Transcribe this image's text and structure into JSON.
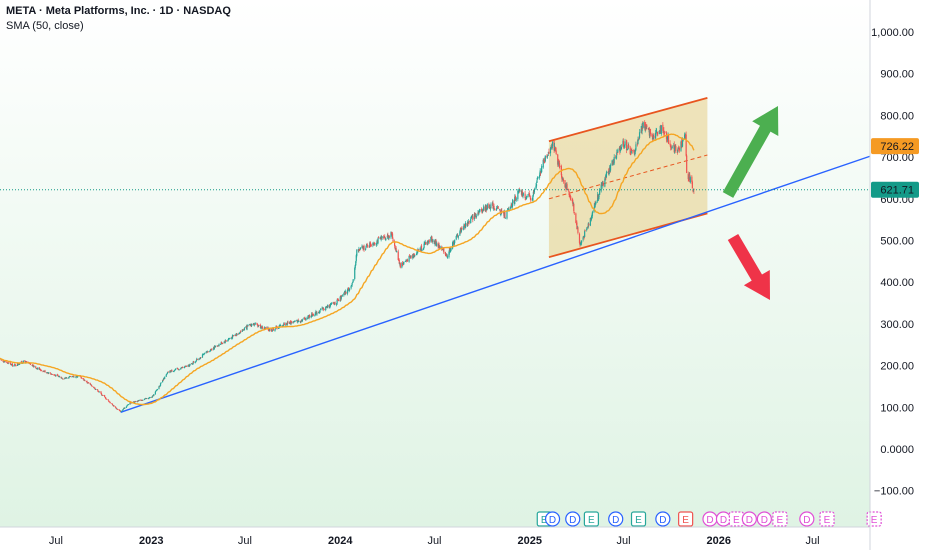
{
  "header": {
    "title": "META · Meta Platforms, Inc. · 1D · NASDAQ",
    "indicator": "SMA (50, close)"
  },
  "colors": {
    "up": "#26a69a",
    "down": "#ef5350",
    "sma": "#f5a623",
    "trendline": "#2962ff",
    "channel": "#e8551f",
    "channel_fill": "#e7d28f",
    "arrow_up": "#4caf50",
    "arrow_down": "#ef3348",
    "bg_top": "#ffffff",
    "bg_bottom": "#dff3e4",
    "last_price_tag": "#139a88",
    "sma_tag": "#f59a23"
  },
  "chart_data": {
    "type": "candlestick",
    "symbol": "META",
    "interval": "1D",
    "exchange": "NASDAQ",
    "indicator": "SMA (50, close)",
    "y_axis": {
      "ticks": [
        1000,
        900,
        800,
        700,
        600,
        500,
        400,
        300,
        200,
        100,
        0,
        -100
      ],
      "tick_labels": [
        "1,000.00",
        "900.00",
        "800.00",
        "700.00",
        "600.00",
        "500.00",
        "400.00",
        "300.00",
        "200.00",
        "100.00",
        "0.0000",
        "−100.00"
      ],
      "range": [
        -125,
        1050
      ]
    },
    "x_axis": {
      "ticks": [
        "2022-07-01",
        "2023-01-01",
        "2023-07-01",
        "2024-01-01",
        "2024-07-01",
        "2025-01-01",
        "2025-07-01",
        "2026-01-01",
        "2026-07-01"
      ],
      "tick_labels": [
        "Jul",
        "2023",
        "Jul",
        "2024",
        "Jul",
        "2025",
        "Jul",
        "2026",
        "Jul"
      ],
      "range": [
        "2022-03-15",
        "2026-10-20"
      ]
    },
    "price_keypoints": [
      [
        "2022-03-15",
        215
      ],
      [
        "2022-04-10",
        200
      ],
      [
        "2022-05-01",
        210
      ],
      [
        "2022-06-01",
        190
      ],
      [
        "2022-07-15",
        170
      ],
      [
        "2022-08-15",
        175
      ],
      [
        "2022-09-20",
        140
      ],
      [
        "2022-10-25",
        98
      ],
      [
        "2022-11-03",
        90
      ],
      [
        "2022-11-20",
        110
      ],
      [
        "2023-01-03",
        125
      ],
      [
        "2023-02-03",
        185
      ],
      [
        "2023-03-15",
        200
      ],
      [
        "2023-04-27",
        240
      ],
      [
        "2023-06-01",
        265
      ],
      [
        "2023-07-15",
        300
      ],
      [
        "2023-08-20",
        285
      ],
      [
        "2023-09-15",
        300
      ],
      [
        "2023-10-20",
        310
      ],
      [
        "2023-11-20",
        330
      ],
      [
        "2023-12-28",
        355
      ],
      [
        "2024-01-25",
        395
      ],
      [
        "2024-02-02",
        475
      ],
      [
        "2024-03-05",
        495
      ],
      [
        "2024-04-09",
        515
      ],
      [
        "2024-04-26",
        440
      ],
      [
        "2024-05-25",
        470
      ],
      [
        "2024-06-25",
        505
      ],
      [
        "2024-07-25",
        465
      ],
      [
        "2024-08-20",
        525
      ],
      [
        "2024-09-25",
        570
      ],
      [
        "2024-10-20",
        585
      ],
      [
        "2024-11-15",
        560
      ],
      [
        "2024-12-10",
        615
      ],
      [
        "2025-01-05",
        600
      ],
      [
        "2025-01-25",
        680
      ],
      [
        "2025-02-14",
        736
      ],
      [
        "2025-03-05",
        650
      ],
      [
        "2025-03-25",
        590
      ],
      [
        "2025-04-08",
        490
      ],
      [
        "2025-04-22",
        530
      ],
      [
        "2025-05-10",
        600
      ],
      [
        "2025-06-01",
        665
      ],
      [
        "2025-06-30",
        735
      ],
      [
        "2025-07-20",
        705
      ],
      [
        "2025-08-08",
        780
      ],
      [
        "2025-08-25",
        750
      ],
      [
        "2025-09-15",
        770
      ],
      [
        "2025-10-01",
        725
      ],
      [
        "2025-10-15",
        715
      ],
      [
        "2025-10-29",
        750
      ],
      [
        "2025-10-31",
        660
      ],
      [
        "2025-11-10",
        640
      ],
      [
        "2025-11-14",
        609
      ]
    ],
    "last_price": 621.71,
    "last_price_label": "621.71",
    "sma_last": 726.22,
    "sma_last_label": "726.22",
    "drawings": {
      "trendline": {
        "from": [
          "2022-11-03",
          88
        ],
        "to": [
          "2026-10-20",
          702
        ]
      },
      "channel": {
        "upper": [
          [
            "2025-02-07",
            738
          ],
          [
            "2025-12-10",
            842
          ]
        ],
        "lower": [
          [
            "2025-02-07",
            460
          ],
          [
            "2025-12-10",
            565
          ]
        ],
        "mid": [
          [
            "2025-02-07",
            600
          ],
          [
            "2025-12-10",
            705
          ]
        ]
      },
      "arrow_up": {
        "direction": "up"
      },
      "arrow_down": {
        "direction": "down"
      }
    },
    "event_markers": [
      {
        "date": "2025-01-29",
        "label": "E"
      },
      {
        "date": "2025-02-14",
        "label": "D"
      },
      {
        "date": "2025-03-25",
        "label": "D"
      },
      {
        "date": "2025-04-30",
        "label": "E"
      },
      {
        "date": "2025-06-16",
        "label": "D"
      },
      {
        "date": "2025-07-30",
        "label": "E"
      },
      {
        "date": "2025-09-15",
        "label": "D"
      },
      {
        "date": "2025-10-29",
        "label": "E"
      },
      {
        "date": "2025-12-15",
        "label": "D"
      },
      {
        "date": "2026-01-10",
        "label": "D"
      },
      {
        "date": "2026-02-04",
        "label": "E"
      },
      {
        "date": "2026-03-01",
        "label": "D"
      },
      {
        "date": "2026-03-30",
        "label": "D"
      },
      {
        "date": "2026-04-29",
        "label": "E"
      },
      {
        "date": "2026-06-20",
        "label": "D"
      },
      {
        "date": "2026-07-29",
        "label": "E"
      },
      {
        "date": "2026-10-28",
        "label": "E"
      }
    ]
  }
}
